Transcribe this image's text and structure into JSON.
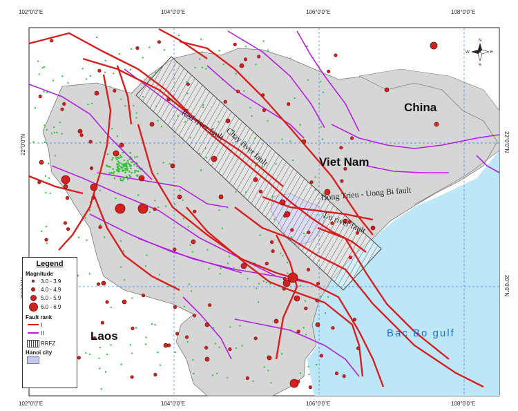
{
  "map": {
    "top_ticks": [
      "102°0'0\"E",
      "104°0'0\"E",
      "106°0'0\"E",
      "108°0'0\"E"
    ],
    "bottom_ticks": [
      "102°0'0\"E",
      "104°0'0\"E",
      "106°0'0\"E",
      "108°0'0\"E"
    ],
    "left_ticks": [
      "22°0'0\"N",
      "20°0'0\"N"
    ],
    "right_ticks": [
      "22°0'0\"N",
      "20°0'0\"N"
    ],
    "labels": {
      "china": "China",
      "vietnam": "Viet Nam",
      "laos": "Laos",
      "gulf": "Bac Bo gulf"
    },
    "fault_labels": {
      "red_river": "Red river fault",
      "chay_river": "Chay river fault",
      "dong_trieu": "Dong Trieu - Uong Bi fault",
      "lo_river": "Lo river fault"
    },
    "north_arrow": {
      "n": "N",
      "s": "S",
      "e": "E",
      "w": "W"
    }
  },
  "legend": {
    "title": "Legend",
    "magnitude_title": "Magnitude",
    "magnitude_items": [
      "3.0 - 3.9",
      "4.0 - 4.9",
      "5.0 - 5.9",
      "6.0 - 6.9"
    ],
    "fault_title": "Fault rank",
    "fault_items": [
      "I",
      "II"
    ],
    "rrfz_label": "RRFZ",
    "hanoi_label": "Hanoi city"
  },
  "colors": {
    "sea": "#bde6f7",
    "land": "#d6d6d6",
    "fault_I": "#d81e1e",
    "fault_II": "#b21fe0",
    "quake": "#d42020",
    "small_quake": "#36c23c",
    "hanoi": "#c7c9ee"
  }
}
